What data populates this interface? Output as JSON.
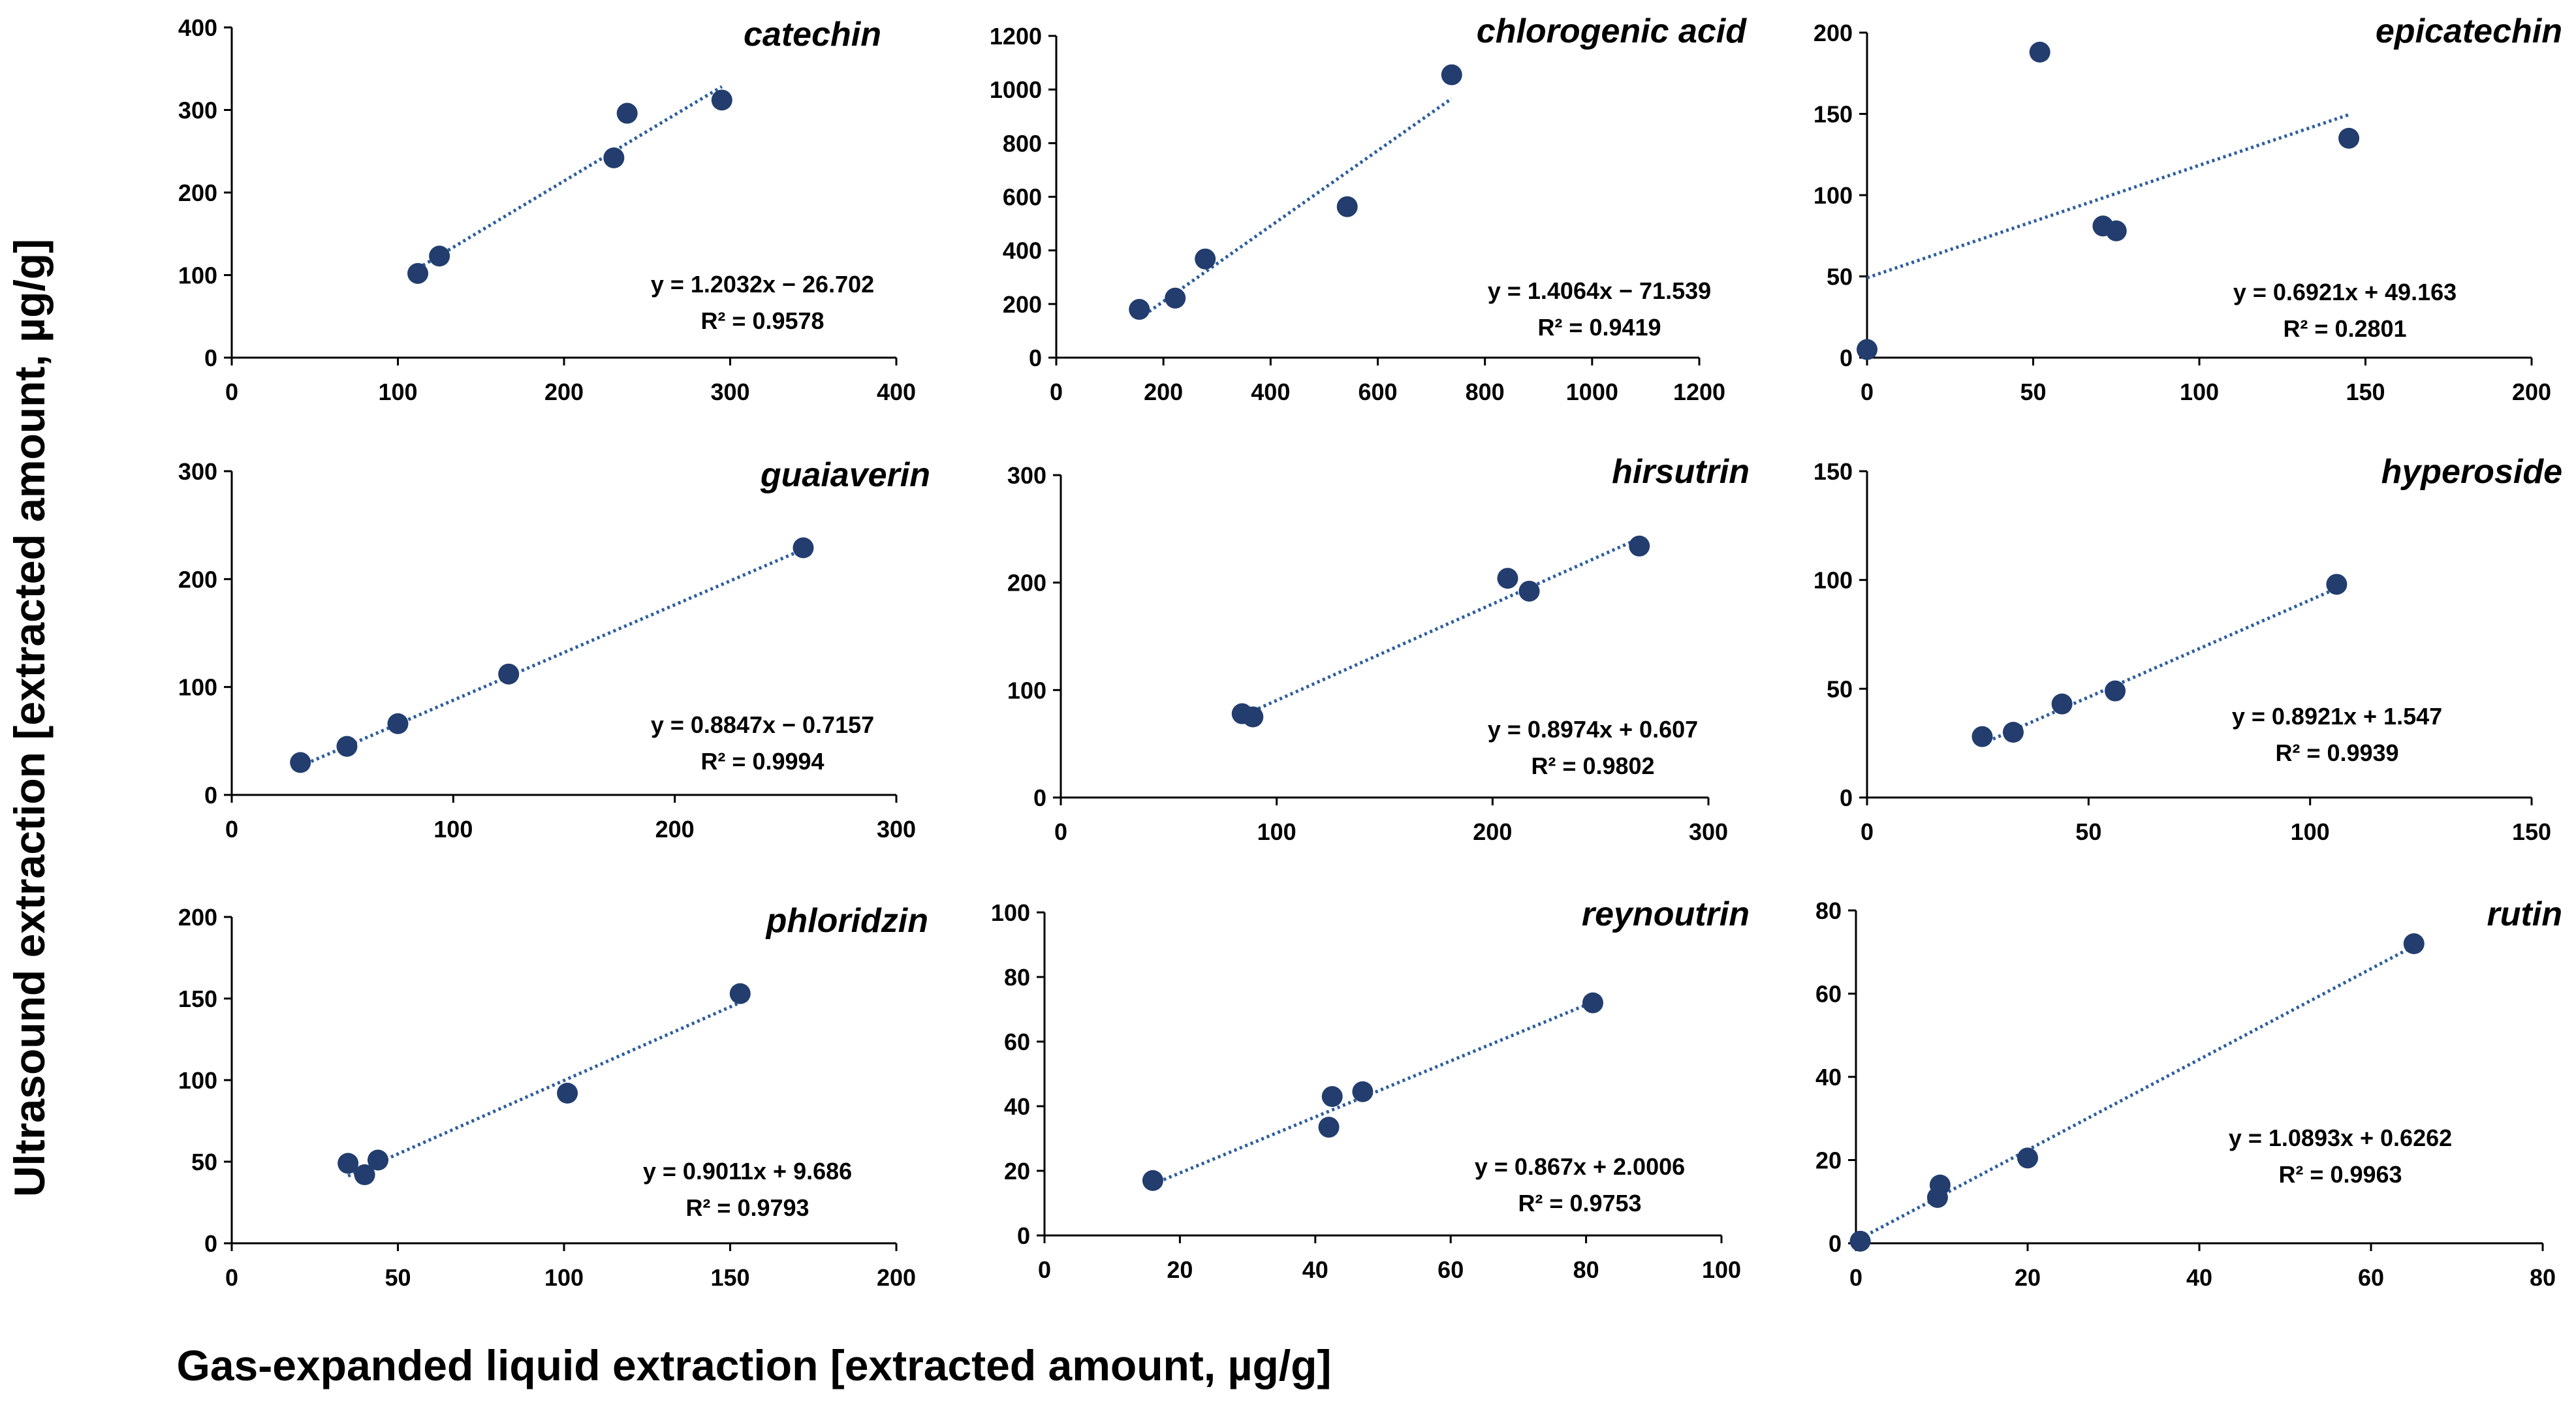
{
  "figure": {
    "xlabel": "Gas-expanded liquid extraction [extracted amount, µg/g]",
    "ylabel": "Ultrasound extraction [extracted amount, µg/g]"
  },
  "colors": {
    "point": "#223d6e",
    "trendline": "#2d5d9e",
    "axis": "#000000"
  },
  "chart_data": [
    {
      "type": "scatter",
      "title": "catechin",
      "x": [
        112,
        125,
        230,
        238,
        295
      ],
      "y": [
        102,
        123,
        242,
        296,
        312
      ],
      "xlim": [
        0,
        400
      ],
      "xticks": [
        0,
        100,
        200,
        300,
        400
      ],
      "ylim": [
        0,
        400
      ],
      "yticks": [
        0,
        100,
        200,
        300,
        400
      ],
      "trendline": {
        "slope": 1.2032,
        "intercept": -26.702,
        "x_range": [
          112,
          295
        ]
      },
      "equation": "y = 1.2032x − 26.702",
      "r2": "R² = 0.9578"
    },
    {
      "type": "scatter",
      "title": "chlorogenic acid",
      "x": [
        155,
        222,
        278,
        543,
        738
      ],
      "y": [
        180,
        222,
        368,
        563,
        1055
      ],
      "xlim": [
        0,
        1200
      ],
      "xticks": [
        0,
        200,
        400,
        600,
        800,
        1000,
        1200
      ],
      "ylim": [
        0,
        1200
      ],
      "yticks": [
        0,
        200,
        400,
        600,
        800,
        1000,
        1200
      ],
      "trendline": {
        "slope": 1.4064,
        "intercept": -71.539,
        "x_range": [
          155,
          738
        ]
      },
      "equation": "y = 1.4064x − 71.539",
      "r2": "R² = 0.9419"
    },
    {
      "type": "scatter",
      "title": "epicatechin",
      "x": [
        0,
        52,
        71,
        75,
        145
      ],
      "y": [
        5,
        188,
        81,
        78,
        135
      ],
      "xlim": [
        0,
        200
      ],
      "xticks": [
        0,
        50,
        100,
        150,
        200
      ],
      "ylim": [
        0,
        200
      ],
      "yticks": [
        0,
        50,
        100,
        150,
        200
      ],
      "trendline": {
        "slope": 0.6921,
        "intercept": 49.163,
        "x_range": [
          0,
          145
        ]
      },
      "equation": "y = 0.6921x + 49.163",
      "r2": "R² = 0.2801"
    },
    {
      "type": "scatter",
      "title": "guaiaverin",
      "x": [
        31,
        52,
        75,
        125,
        258
      ],
      "y": [
        30,
        45,
        66,
        112,
        229
      ],
      "xlim": [
        0,
        300
      ],
      "xticks": [
        0,
        100,
        200,
        300
      ],
      "ylim": [
        0,
        300
      ],
      "yticks": [
        0,
        100,
        200,
        300
      ],
      "trendline": {
        "slope": 0.8847,
        "intercept": -0.7157,
        "x_range": [
          31,
          258
        ]
      },
      "equation": "y = 0.8847x − 0.7157",
      "r2": "R² = 0.9994"
    },
    {
      "type": "scatter",
      "title": "hirsutrin",
      "x": [
        84,
        89,
        207,
        217,
        268
      ],
      "y": [
        78,
        75,
        204,
        192,
        234
      ],
      "xlim": [
        0,
        300
      ],
      "xticks": [
        0,
        100,
        200,
        300
      ],
      "ylim": [
        0,
        300
      ],
      "yticks": [
        0,
        100,
        200,
        300
      ],
      "trendline": {
        "slope": 0.8974,
        "intercept": 0.607,
        "x_range": [
          84,
          268
        ]
      },
      "equation": "y = 0.8974x + 0.607",
      "r2": "R² = 0.9802"
    },
    {
      "type": "scatter",
      "title": "hyperoside",
      "x": [
        26,
        33,
        44,
        56,
        106
      ],
      "y": [
        28,
        30,
        43,
        49,
        98
      ],
      "xlim": [
        0,
        150
      ],
      "xticks": [
        0,
        50,
        100,
        150
      ],
      "ylim": [
        0,
        150
      ],
      "yticks": [
        0,
        50,
        100,
        150
      ],
      "trendline": {
        "slope": 0.8921,
        "intercept": 1.547,
        "x_range": [
          26,
          106
        ]
      },
      "equation": "y = 0.8921x + 1.547",
      "r2": "R² = 0.9939"
    },
    {
      "type": "scatter",
      "title": "phloridzin",
      "x": [
        35,
        40,
        44,
        101,
        153
      ],
      "y": [
        49,
        42,
        51,
        92,
        153
      ],
      "xlim": [
        0,
        200
      ],
      "xticks": [
        0,
        50,
        100,
        150,
        200
      ],
      "ylim": [
        0,
        200
      ],
      "yticks": [
        0,
        50,
        100,
        150,
        200
      ],
      "trendline": {
        "slope": 0.9011,
        "intercept": 9.686,
        "x_range": [
          35,
          153
        ]
      },
      "equation": "y = 0.9011x + 9.686",
      "r2": "R² = 0.9793"
    },
    {
      "type": "scatter",
      "title": "reynoutrin",
      "x": [
        16,
        42,
        42.5,
        47,
        81
      ],
      "y": [
        17,
        33.5,
        43,
        44.5,
        72
      ],
      "xlim": [
        0,
        100
      ],
      "xticks": [
        0,
        20,
        40,
        60,
        80,
        100
      ],
      "ylim": [
        0,
        100
      ],
      "yticks": [
        0,
        20,
        40,
        60,
        80,
        100
      ],
      "trendline": {
        "slope": 0.867,
        "intercept": 2.0006,
        "x_range": [
          16,
          81
        ]
      },
      "equation": "y = 0.867x + 2.0006",
      "r2": "R² = 0.9753"
    },
    {
      "type": "scatter",
      "title": "rutin",
      "x": [
        0.5,
        9.5,
        9.8,
        20,
        65
      ],
      "y": [
        0.5,
        11,
        14,
        20.5,
        72
      ],
      "xlim": [
        0,
        80
      ],
      "xticks": [
        0,
        20,
        40,
        60,
        80
      ],
      "ylim": [
        0,
        80
      ],
      "yticks": [
        0,
        20,
        40,
        60,
        80
      ],
      "trendline": {
        "slope": 1.0893,
        "intercept": 0.6262,
        "x_range": [
          0.5,
          65
        ]
      },
      "equation": "y = 1.0893x + 0.6262",
      "r2": "R² = 0.9963"
    }
  ]
}
